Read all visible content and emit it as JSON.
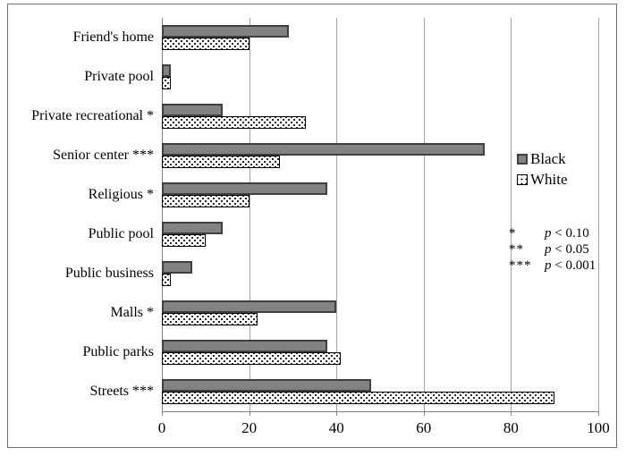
{
  "figure": {
    "background": "#ffffff",
    "border_color": "#6f6f6f"
  },
  "chart_data": {
    "type": "bar",
    "orientation": "horizontal",
    "title": "",
    "xlabel": "",
    "ylabel": "",
    "categories": [
      "Friend's home",
      "Private pool",
      "Private recreational *",
      "Senior center ***",
      "Religious *",
      "Public pool",
      "Public business",
      "Malls *",
      "Public parks",
      "Streets ***"
    ],
    "series": [
      {
        "name": "Black",
        "pattern": "solid",
        "fill": "#828282",
        "border": "#3f3f3f",
        "values": [
          29,
          2,
          14,
          74,
          38,
          14,
          7,
          40,
          38,
          48
        ]
      },
      {
        "name": "White",
        "pattern": "dots",
        "fill": "#ffffff",
        "border": "#000000",
        "values": [
          20,
          2,
          33,
          27,
          20,
          10,
          2,
          22,
          41,
          90
        ]
      }
    ],
    "x_ticks": [
      0,
      20,
      40,
      60,
      80,
      100
    ],
    "xlim": [
      0,
      100
    ],
    "grid": "vertical",
    "gridline_color": "#a3a3a3",
    "axis_color": "#858585",
    "legend_position": "right-middle",
    "significance_key": [
      {
        "symbol": "*",
        "p_italic": "p",
        "comparison": "< 0.10"
      },
      {
        "symbol": "**",
        "p_italic": "p",
        "comparison": "< 0.05"
      },
      {
        "symbol": "***",
        "p_italic": "p",
        "comparison": "< 0.001"
      }
    ]
  }
}
